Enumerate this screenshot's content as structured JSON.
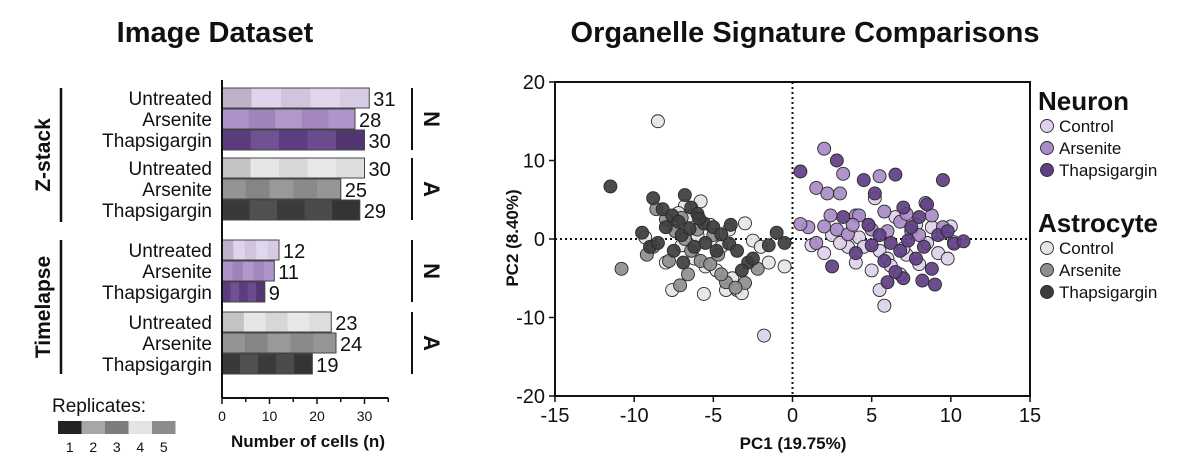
{
  "colors": {
    "neuron": [
      "#ddd1ec",
      "#a98bc7",
      "#5f3f86"
    ],
    "astrocyte": [
      "#e5e5e5",
      "#8e8e8e",
      "#3d3d3d"
    ],
    "neuron_tag": "#7a57a3",
    "astrocyte_tag": "#8f8f8f",
    "replicates": [
      "#222222",
      "#a7a7a7",
      "#7d7d7d",
      "#e4e4e4",
      "#8c8c8c"
    ]
  },
  "chart_data": [
    {
      "type": "bar",
      "title": "Image Dataset",
      "xlabel": "Number of cells (n)",
      "xlim": [
        0,
        35
      ],
      "xticks": [
        0,
        10,
        20,
        30
      ],
      "groups": [
        {
          "name": "Z-stack",
          "subgroups": [
            {
              "tag": "N",
              "cell_type": "neuron",
              "rows": [
                {
                  "label": "Untreated",
                  "value": 31
                },
                {
                  "label": "Arsenite",
                  "value": 28
                },
                {
                  "label": "Thapsigargin",
                  "value": 30
                }
              ]
            },
            {
              "tag": "A",
              "cell_type": "astrocyte",
              "rows": [
                {
                  "label": "Untreated",
                  "value": 30
                },
                {
                  "label": "Arsenite",
                  "value": 25
                },
                {
                  "label": "Thapsigargin",
                  "value": 29
                }
              ]
            }
          ]
        },
        {
          "name": "Timelapse",
          "subgroups": [
            {
              "tag": "N",
              "cell_type": "neuron",
              "rows": [
                {
                  "label": "Untreated",
                  "value": 12
                },
                {
                  "label": "Arsenite",
                  "value": 11
                },
                {
                  "label": "Thapsigargin",
                  "value": 9
                }
              ]
            },
            {
              "tag": "A",
              "cell_type": "astrocyte",
              "rows": [
                {
                  "label": "Untreated",
                  "value": 23
                },
                {
                  "label": "Arsenite",
                  "value": 24
                },
                {
                  "label": "Thapsigargin",
                  "value": 19
                }
              ]
            }
          ]
        }
      ],
      "replicates_legend": {
        "title": "Replicates:",
        "labels": [
          "1",
          "2",
          "3",
          "4",
          "5"
        ]
      }
    },
    {
      "type": "scatter",
      "title": "Organelle Signature Comparisons",
      "xlabel": "PC1 (19.75%)",
      "ylabel": "PC2 (8.40%)",
      "xlim": [
        -15,
        15
      ],
      "ylim": [
        -20,
        20
      ],
      "xticks": [
        -15,
        -10,
        -5,
        0,
        5,
        10,
        15
      ],
      "yticks": [
        -20,
        -10,
        0,
        10,
        20
      ],
      "reference_lines": {
        "x": 0,
        "y": 0,
        "style": "dotted"
      },
      "legend": [
        {
          "group": "Neuron",
          "entries": [
            "Control",
            "Arsenite",
            "Thapsigargin"
          ]
        },
        {
          "group": "Astrocyte",
          "entries": [
            "Control",
            "Arsenite",
            "Thapsigargin"
          ]
        }
      ],
      "series": [
        {
          "name": "Neuron Control",
          "points": [
            [
              -1.8,
              -12.3
            ],
            [
              1.2,
              -0.8
            ],
            [
              2.5,
              0.5
            ],
            [
              3.5,
              -1.0
            ],
            [
              4.2,
              0.2
            ],
            [
              4.8,
              1.8
            ],
            [
              5.5,
              -1.5
            ],
            [
              5.2,
              5.2
            ],
            [
              6.0,
              -2.5
            ],
            [
              6.8,
              -4.5
            ],
            [
              7.2,
              -2.0
            ],
            [
              7.8,
              1.8
            ],
            [
              8.5,
              -0.5
            ],
            [
              8.8,
              1.5
            ],
            [
              9.2,
              -1.8
            ],
            [
              9.5,
              0.8
            ],
            [
              10.2,
              -0.4
            ],
            [
              10.0,
              1.6
            ],
            [
              5.8,
              -8.5
            ],
            [
              5.5,
              -6.5
            ],
            [
              4.0,
              -3.0
            ],
            [
              6.5,
              2.8
            ],
            [
              3.0,
              -0.5
            ],
            [
              7.0,
              -1.2
            ],
            [
              8.0,
              -3.2
            ],
            [
              9.8,
              -2.5
            ],
            [
              5.0,
              -4.0
            ],
            [
              2.0,
              -1.8
            ],
            [
              4.5,
              -1.0
            ],
            [
              6.2,
              -3.4
            ]
          ]
        },
        {
          "name": "Neuron Arsenite",
          "points": [
            [
              2.0,
              11.5
            ],
            [
              1.5,
              6.5
            ],
            [
              2.2,
              5.8
            ],
            [
              3.0,
              5.8
            ],
            [
              3.2,
              8.3
            ],
            [
              4.0,
              3.0
            ],
            [
              5.5,
              8.0
            ],
            [
              1.0,
              1.5
            ],
            [
              2.0,
              1.6
            ],
            [
              2.8,
              1.2
            ],
            [
              3.5,
              0.6
            ],
            [
              4.2,
              3.0
            ],
            [
              5.0,
              1.2
            ],
            [
              6.8,
              2.2
            ],
            [
              7.5,
              1.0
            ],
            [
              8.0,
              0.5
            ],
            [
              8.8,
              3.0
            ],
            [
              9.5,
              1.5
            ],
            [
              1.5,
              -0.5
            ],
            [
              3.8,
              1.8
            ],
            [
              5.8,
              3.5
            ],
            [
              8.4,
              4.6
            ],
            [
              2.4,
              3.0
            ],
            [
              6.0,
              1.0
            ],
            [
              0.5,
              1.9
            ],
            [
              7.2,
              3.2
            ]
          ]
        },
        {
          "name": "Neuron Thapsigargin",
          "points": [
            [
              0.5,
              8.6
            ],
            [
              2.8,
              10.0
            ],
            [
              4.5,
              7.5
            ],
            [
              5.2,
              5.8
            ],
            [
              6.5,
              8.2
            ],
            [
              7.0,
              4.0
            ],
            [
              8.5,
              4.4
            ],
            [
              9.5,
              7.5
            ],
            [
              3.2,
              2.8
            ],
            [
              4.8,
              1.8
            ],
            [
              5.5,
              0.5
            ],
            [
              6.2,
              -0.5
            ],
            [
              6.8,
              -1.5
            ],
            [
              7.3,
              -0.2
            ],
            [
              7.8,
              -2.5
            ],
            [
              8.3,
              -1.0
            ],
            [
              8.8,
              -3.8
            ],
            [
              9.2,
              0.5
            ],
            [
              10.2,
              -0.6
            ],
            [
              10.8,
              -0.3
            ],
            [
              6.0,
              -5.5
            ],
            [
              7.0,
              -5.0
            ],
            [
              8.2,
              -5.3
            ],
            [
              9.0,
              -5.8
            ],
            [
              4.0,
              -1.8
            ],
            [
              2.5,
              -3.5
            ],
            [
              5.8,
              -2.8
            ],
            [
              9.8,
              1.0
            ],
            [
              6.5,
              -4.2
            ],
            [
              5.0,
              -0.8
            ],
            [
              7.5,
              1.5
            ],
            [
              8.0,
              2.8
            ]
          ]
        },
        {
          "name": "Astrocyte Control",
          "points": [
            [
              -8.5,
              15.0
            ],
            [
              -9.3,
              0.2
            ],
            [
              -7.5,
              2.0
            ],
            [
              -6.5,
              3.0
            ],
            [
              -5.8,
              4.8
            ],
            [
              -5.2,
              1.8
            ],
            [
              -6.0,
              0.5
            ],
            [
              -7.0,
              -0.8
            ],
            [
              -6.2,
              -2.5
            ],
            [
              -5.5,
              -3.5
            ],
            [
              -4.8,
              -4.0
            ],
            [
              -4.2,
              -6.5
            ],
            [
              -3.5,
              -6.5
            ],
            [
              -3.2,
              -6.9
            ],
            [
              -3.8,
              -5.0
            ],
            [
              -2.5,
              -0.2
            ],
            [
              -2.0,
              -1.0
            ],
            [
              -1.5,
              -3.0
            ],
            [
              -4.0,
              1.2
            ],
            [
              -6.8,
              4.2
            ],
            [
              -8.0,
              -3.0
            ],
            [
              -7.6,
              -6.5
            ],
            [
              -7.2,
              3.3
            ],
            [
              -3.0,
              2.0
            ],
            [
              -0.5,
              -3.5
            ],
            [
              -5.6,
              -7.0
            ],
            [
              -4.5,
              -1.0
            ]
          ]
        },
        {
          "name": "Astrocyte Arsenite",
          "points": [
            [
              -8.6,
              3.8
            ],
            [
              -8.0,
              2.5
            ],
            [
              -7.4,
              1.0
            ],
            [
              -6.8,
              0.0
            ],
            [
              -6.4,
              -1.5
            ],
            [
              -5.8,
              -2.8
            ],
            [
              -5.2,
              -3.2
            ],
            [
              -4.7,
              -2.0
            ],
            [
              -4.2,
              -5.5
            ],
            [
              -3.0,
              -5.6
            ],
            [
              -10.8,
              -3.8
            ],
            [
              -9.2,
              -2.0
            ],
            [
              -7.0,
              2.7
            ],
            [
              -6.0,
              1.2
            ],
            [
              -5.0,
              0.5
            ],
            [
              -8.8,
              -1.0
            ],
            [
              -7.8,
              -2.8
            ],
            [
              -6.6,
              -4.5
            ],
            [
              -4.5,
              -4.5
            ],
            [
              -3.6,
              -6.2
            ],
            [
              -2.2,
              -3.8
            ],
            [
              -7.1,
              -5.9
            ]
          ]
        },
        {
          "name": "Astrocyte Thapsigargin",
          "points": [
            [
              -11.5,
              6.7
            ],
            [
              -8.8,
              5.2
            ],
            [
              -8.2,
              3.8
            ],
            [
              -7.6,
              3.0
            ],
            [
              -7.2,
              2.2
            ],
            [
              -6.8,
              5.6
            ],
            [
              -6.4,
              4.0
            ],
            [
              -6.0,
              3.2
            ],
            [
              -5.6,
              2.0
            ],
            [
              -5.0,
              1.5
            ],
            [
              -4.5,
              0.6
            ],
            [
              -4.0,
              -0.6
            ],
            [
              -3.5,
              -1.5
            ],
            [
              -2.8,
              -3.0
            ],
            [
              -2.5,
              -2.5
            ],
            [
              -1.5,
              -0.8
            ],
            [
              -1.0,
              0.8
            ],
            [
              -0.5,
              -0.5
            ],
            [
              -9.0,
              -1.0
            ],
            [
              -8.5,
              -0.5
            ],
            [
              -8.0,
              1.5
            ],
            [
              -7.5,
              -1.5
            ],
            [
              -7.0,
              0.5
            ],
            [
              -6.5,
              1.3
            ],
            [
              -6.2,
              -1.0
            ],
            [
              -5.5,
              -0.5
            ],
            [
              -4.8,
              -1.5
            ],
            [
              -3.2,
              -4.0
            ],
            [
              -9.5,
              0.8
            ],
            [
              -6.9,
              -3.0
            ],
            [
              -5.9,
              2.6
            ],
            [
              -3.9,
              1.8
            ]
          ]
        }
      ]
    }
  ]
}
